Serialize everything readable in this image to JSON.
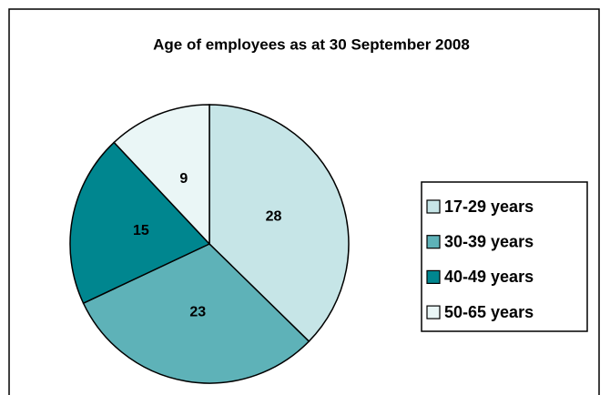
{
  "chart_data": {
    "type": "pie",
    "title": "Age of employees as at 30 September 2008",
    "categories": [
      "17-29 years",
      "30-39 years",
      "40-49 years",
      "50-65 years"
    ],
    "values": [
      28,
      23,
      15,
      9
    ],
    "colors": [
      "#c6e5e7",
      "#5eb2b8",
      "#00868f",
      "#eaf6f6"
    ],
    "legend": "right"
  }
}
